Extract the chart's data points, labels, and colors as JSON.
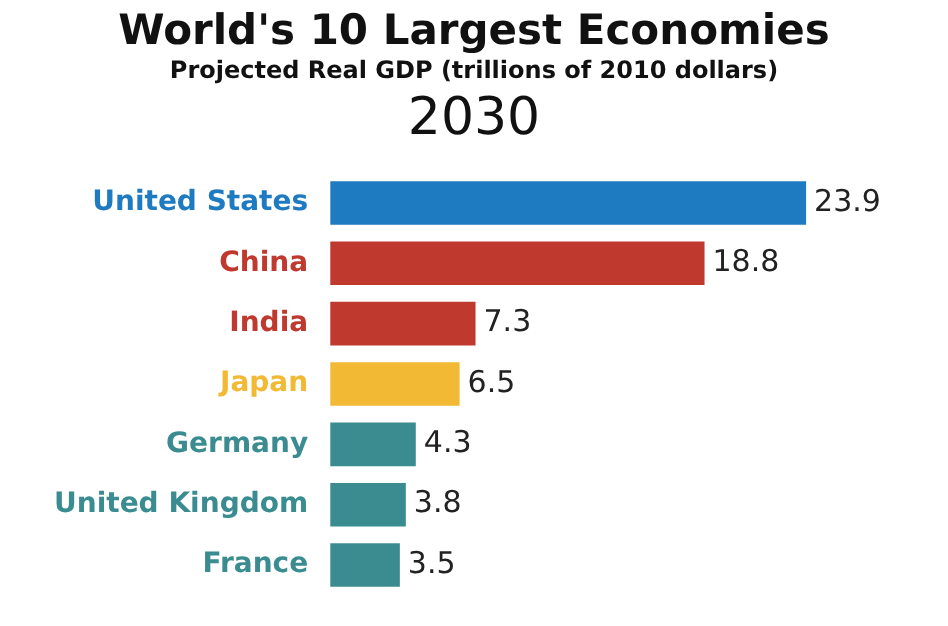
{
  "chart_data": {
    "type": "bar",
    "orientation": "horizontal",
    "title": "World's 10 Largest Economies",
    "subtitle": "Projected Real GDP (trillions of 2010 dollars)",
    "annotations": [
      "2030"
    ],
    "categories": [
      "United States",
      "China",
      "India",
      "Japan",
      "Germany",
      "United Kingdom",
      "France"
    ],
    "values": [
      23.9,
      18.8,
      7.3,
      6.5,
      4.3,
      3.8,
      3.5
    ],
    "colors": [
      "#1f7bc1",
      "#c0392f",
      "#c0392f",
      "#f2b935",
      "#3a8c91",
      "#3a8c91",
      "#3a8c91"
    ],
    "data_labels": true
  }
}
